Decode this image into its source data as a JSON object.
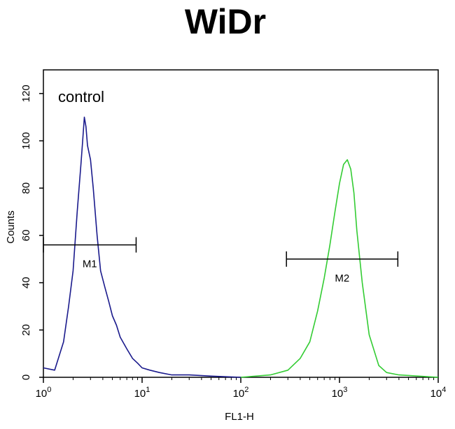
{
  "chart_data": {
    "type": "line",
    "title": "WiDr",
    "xlabel": "FL1-H",
    "ylabel": "Counts",
    "x_scale": "log",
    "xlim": [
      1,
      10000
    ],
    "ylim": [
      0,
      130
    ],
    "x_ticks": [
      {
        "value": 1,
        "base": "10",
        "exp": "0"
      },
      {
        "value": 10,
        "base": "10",
        "exp": "1"
      },
      {
        "value": 100,
        "base": "10",
        "exp": "2"
      },
      {
        "value": 1000,
        "base": "10",
        "exp": "3"
      },
      {
        "value": 10000,
        "base": "10",
        "exp": "4"
      }
    ],
    "y_ticks": [
      0,
      20,
      40,
      60,
      80,
      100,
      120
    ],
    "annotation": "control",
    "grid": false,
    "series": [
      {
        "color": "#1a1a8c",
        "x": [
          1.0,
          1.3,
          1.6,
          1.8,
          2.0,
          2.2,
          2.4,
          2.5,
          2.6,
          2.7,
          2.8,
          3.0,
          3.2,
          3.5,
          3.8,
          4.2,
          4.6,
          5.0,
          5.5,
          6.0,
          7.0,
          8.0,
          9.0,
          10.0,
          12.0,
          15.0,
          20.0,
          30.0,
          50.0,
          100.0
        ],
        "y": [
          4,
          3,
          15,
          30,
          45,
          70,
          90,
          100,
          110,
          106,
          98,
          92,
          80,
          60,
          45,
          38,
          32,
          26,
          22,
          17,
          12,
          8,
          6,
          4,
          3,
          2,
          1,
          1,
          0.5,
          0
        ]
      },
      {
        "color": "#33cc33",
        "x": [
          100.0,
          200.0,
          300.0,
          400.0,
          500.0,
          600.0,
          700.0,
          800.0,
          900.0,
          1000.0,
          1100.0,
          1200.0,
          1300.0,
          1400.0,
          1500.0,
          1700.0,
          2000.0,
          2500.0,
          3000.0,
          4000.0,
          10000.0
        ],
        "y": [
          0,
          1,
          3,
          8,
          15,
          28,
          42,
          56,
          70,
          82,
          90,
          92,
          88,
          78,
          62,
          40,
          18,
          5,
          2,
          1,
          0
        ]
      }
    ],
    "markers": [
      {
        "label": "M1",
        "x_start": 1.0,
        "x_end": 8.7,
        "y": 56
      },
      {
        "label": "M2",
        "x_start": 290,
        "x_end": 3900,
        "y": 50
      }
    ]
  }
}
